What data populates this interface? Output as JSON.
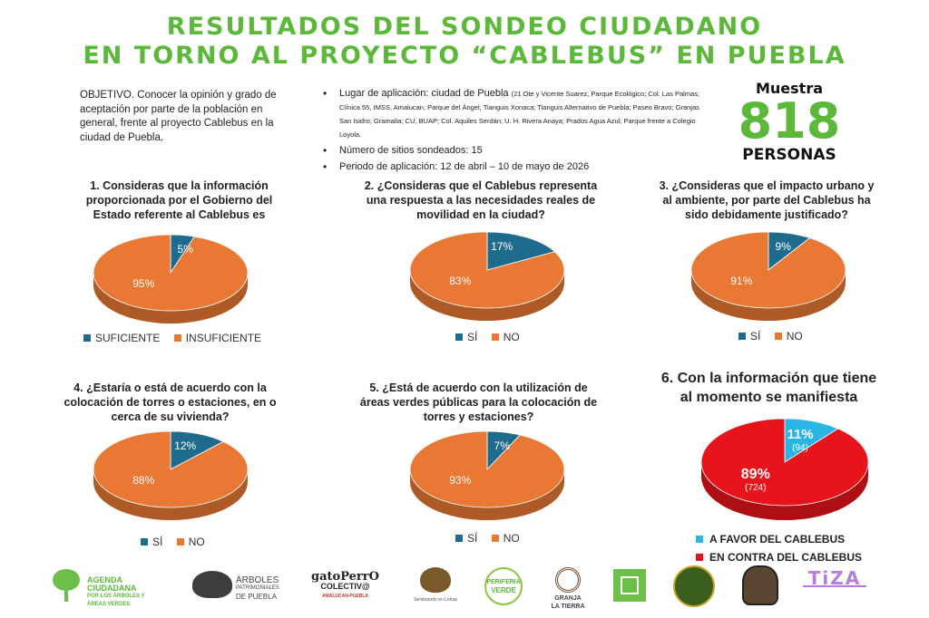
{
  "header": {
    "title_line1": "RESULTADOS DEL SONDEO CIUDADANO",
    "title_line2": "EN TORNO AL PROYECTO “CABLEBUS” EN PUEBLA"
  },
  "objective": "OBJETIVO. Conocer la opinión y grado de aceptación por parte de la población en general, frente al proyecto Cablebus en la ciudad de Puebla.",
  "info": {
    "lugar_label": "Lugar de aplicación: ciudad de Puebla",
    "lugar_detail": "(21 Ote y Vicente Suarez, Parque Ecológico; Col. Las Palmas; Clínica 55, IMSS, Amalucan; Parque del Ángel; Tianguis Xonaca; Tianguis Alternativo de Puebla; Paseo Bravo; Granjas San Isidro; Gramalia; CU, BUAP; Col. Aquiles Serdán; U. H. Rivera Anaya; Prados Agua Azul; Parque frente a Colegio Loyola.",
    "sitios": "Número de sitios sondeados: 15",
    "periodo": "Periodo de aplicación: 12 de abril – 10 de mayo de 2026"
  },
  "muestra": {
    "label": "Muestra",
    "number": "818",
    "unit": "PERSONAS"
  },
  "colors": {
    "blue": "#1f6b8e",
    "orange": "#e87833",
    "cyan": "#29b6e6",
    "red": "#e8141c",
    "green": "#5cb83a"
  },
  "questions": {
    "q1": "1. Consideras que la información proporcionada por el Gobierno del Estado referente al Cablebus es",
    "q2": "2. ¿Consideras que el Cablebus representa una respuesta a las necesidades reales de movilidad en la ciudad?",
    "q3": "3. ¿Consideras que el impacto urbano y al ambiente, por parte del Cablebus ha sido debidamente justificado?",
    "q4": "4. ¿Estaría o está de acuerdo con la colocación de torres o estaciones, en o cerca de su vivienda?",
    "q5": "5. ¿Está de acuerdo con la utilización de áreas verdes públicas para la colocación de torres y estaciones?",
    "q6": "6. Con la información que tiene al momento se manifiesta"
  },
  "legends": {
    "q1": [
      "SUFICIENTE",
      "INSUFICIENTE"
    ],
    "q2": [
      "SÍ",
      "NO"
    ],
    "q3": [
      "SÍ",
      "NO"
    ],
    "q4": [
      "SÍ",
      "NO"
    ],
    "q5": [
      "SÍ",
      "NO"
    ],
    "q6": [
      "A FAVOR DEL CABLEBUS",
      "EN CONTRA DEL CABLEBUS"
    ]
  },
  "chart_data": [
    {
      "type": "pie",
      "title": "1. Consideras que la información proporcionada por el Gobierno del Estado referente al Cablebus es",
      "categories": [
        "SUFICIENTE",
        "INSUFICIENTE"
      ],
      "values": [
        5,
        95
      ],
      "labels": [
        "5%",
        "95%"
      ],
      "colors": [
        "#1f6b8e",
        "#e87833"
      ]
    },
    {
      "type": "pie",
      "title": "2. ¿Consideras que el Cablebus representa una respuesta a las necesidades reales de movilidad en la ciudad?",
      "categories": [
        "SÍ",
        "NO"
      ],
      "values": [
        17,
        83
      ],
      "labels": [
        "17%",
        "83%"
      ],
      "colors": [
        "#1f6b8e",
        "#e87833"
      ]
    },
    {
      "type": "pie",
      "title": "3. ¿Consideras que el impacto urbano y al ambiente, por parte del Cablebus ha sido debidamente justificado?",
      "categories": [
        "SÍ",
        "NO"
      ],
      "values": [
        9,
        91
      ],
      "labels": [
        "9%",
        "91%"
      ],
      "colors": [
        "#1f6b8e",
        "#e87833"
      ]
    },
    {
      "type": "pie",
      "title": "4. ¿Estaría o está de acuerdo con la colocación de torres o estaciones, en o cerca de su vivienda?",
      "categories": [
        "SÍ",
        "NO"
      ],
      "values": [
        12,
        88
      ],
      "labels": [
        "12%",
        "88%"
      ],
      "colors": [
        "#1f6b8e",
        "#e87833"
      ]
    },
    {
      "type": "pie",
      "title": "5. ¿Está de acuerdo con la utilización de áreas verdes públicas para la colocación de torres y estaciones?",
      "categories": [
        "SÍ",
        "NO"
      ],
      "values": [
        7,
        93
      ],
      "labels": [
        "7%",
        "93%"
      ],
      "colors": [
        "#1f6b8e",
        "#e87833"
      ]
    },
    {
      "type": "pie",
      "title": "6. Con la información que tiene al momento se manifiesta",
      "categories": [
        "A FAVOR DEL CABLEBUS",
        "EN CONTRA DEL CABLEBUS"
      ],
      "values": [
        11,
        89
      ],
      "labels": [
        "11%",
        "89%"
      ],
      "counts": [
        "(94)",
        "(724)"
      ],
      "colors": [
        "#29b6e6",
        "#e8141c"
      ]
    }
  ],
  "logos": {
    "agenda": [
      "AGENDA CIUDADANA",
      "POR LOS ÁRBOLES Y",
      "ÁREAS VERDES"
    ],
    "arboles": [
      "ÁRBOLES",
      "PATRIMONIALES",
      "DE PUEBLA"
    ],
    "gato": [
      "gatoPerrO",
      "COLECTIV@",
      "AMALUCAN-PUEBLA"
    ],
    "sembrando": "Sembrando en Letras",
    "periferia": [
      "PERIFERIA",
      "VERDE"
    ],
    "granja": [
      "GRANJA",
      "LA TIERRA"
    ],
    "tiza": "TiZA"
  }
}
